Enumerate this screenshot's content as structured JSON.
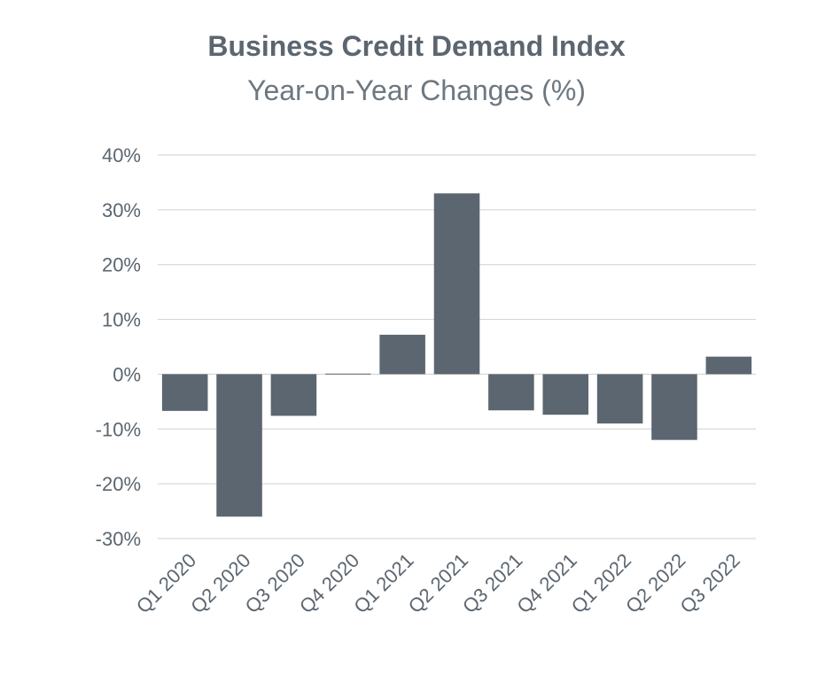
{
  "chart_data": {
    "type": "bar",
    "title": "Business Credit Demand Index",
    "subtitle": "Year-on-Year Changes (%)",
    "xlabel": "",
    "ylabel": "",
    "categories": [
      "Q1 2020",
      "Q2 2020",
      "Q3 2020",
      "Q4 2020",
      "Q1 2021",
      "Q2 2021",
      "Q3 2021",
      "Q4 2021",
      "Q1 2022",
      "Q2 2022",
      "Q3 2022"
    ],
    "values": [
      -6.7,
      -26.0,
      -7.6,
      0.1,
      7.2,
      33.0,
      -6.6,
      -7.4,
      -9.0,
      -12.0,
      3.2
    ],
    "ylim": [
      -30,
      40
    ],
    "yticks": [
      -30,
      -20,
      -10,
      0,
      10,
      20,
      30,
      40
    ],
    "ytick_labels": [
      "-30%",
      "-20%",
      "-10%",
      "0%",
      "10%",
      "20%",
      "30%",
      "40%"
    ],
    "grid": true,
    "legend": "none",
    "colors": {
      "bar": "#5b6670",
      "grid": "#d0d0d0",
      "text": "#5b6670"
    }
  }
}
